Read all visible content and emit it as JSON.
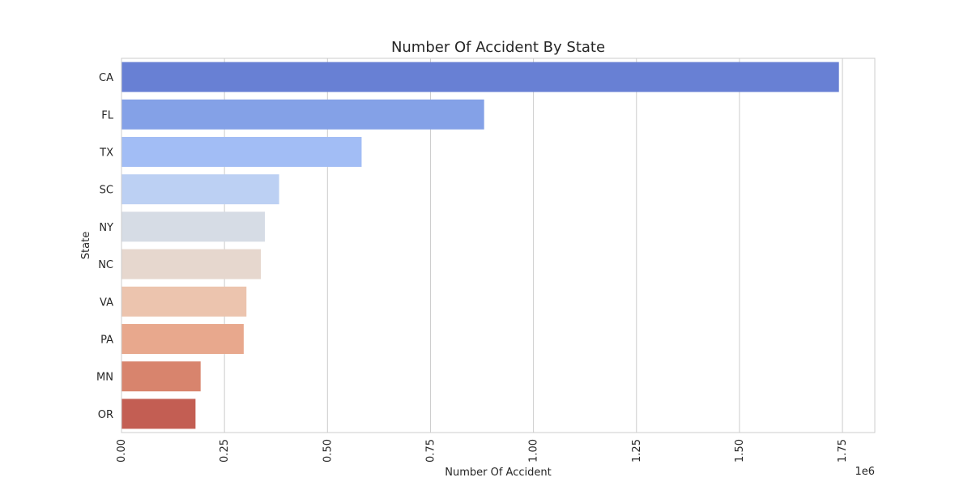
{
  "chart_data": {
    "type": "bar",
    "orientation": "horizontal",
    "title": "Number Of Accident By State",
    "xlabel": "Number Of Accident",
    "ylabel": "State",
    "x_offset_text": "1e6",
    "categories": [
      "CA",
      "FL",
      "TX",
      "SC",
      "NY",
      "NC",
      "VA",
      "PA",
      "MN",
      "OR"
    ],
    "values": [
      1741433,
      880192,
      582837,
      382557,
      347960,
      338199,
      303301,
      296620,
      192084,
      179660
    ],
    "xlim": [
      0,
      1828505
    ],
    "xticks": [
      0,
      250000,
      500000,
      750000,
      1000000,
      1250000,
      1500000,
      1750000
    ],
    "xtick_labels": [
      "0.00",
      "0.25",
      "0.50",
      "0.75",
      "1.00",
      "1.25",
      "1.50",
      "1.75"
    ],
    "colors": [
      "#6880d4",
      "#84a1e7",
      "#a2bdf5",
      "#bcd0f3",
      "#d6dce5",
      "#e6d7ce",
      "#ecc4ae",
      "#e8a88d",
      "#d8846d",
      "#c35e53"
    ],
    "grid": "x",
    "legend": "none"
  }
}
